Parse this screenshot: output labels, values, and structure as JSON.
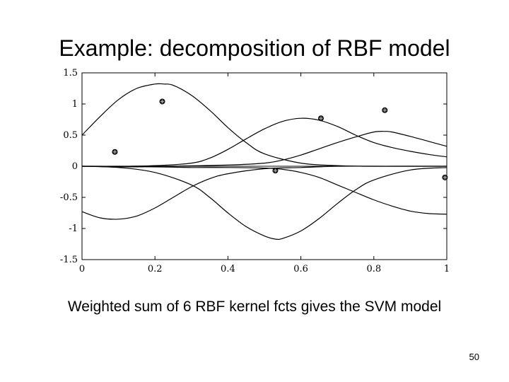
{
  "slide": {
    "title": "Example: decomposition of RBF model",
    "caption": "Weighted sum of 6 RBF kernel fcts gives the SVM model",
    "page_number": "50"
  },
  "chart_data": {
    "type": "line",
    "title": "",
    "xlabel": "",
    "ylabel": "",
    "xlim": [
      0,
      1
    ],
    "ylim": [
      -1.5,
      1.5
    ],
    "x_ticks": [
      0,
      0.2,
      0.4,
      0.6,
      0.8,
      1
    ],
    "x_tick_labels": [
      "0",
      "0.2",
      "0.4",
      "0.6",
      "0.8",
      "1"
    ],
    "y_ticks": [
      1.5,
      1,
      0.5,
      0,
      -0.5,
      -1,
      -1.5
    ],
    "y_tick_labels": [
      "1.5",
      "1",
      "0.5",
      "0",
      "-0.5",
      "-1",
      "-1.5"
    ],
    "grid": false,
    "line_color": "#000000",
    "series": [
      {
        "x": [
          0,
          0.05,
          0.1,
          0.15,
          0.2,
          0.225,
          0.25,
          0.3,
          0.35,
          0.4,
          0.45,
          0.5,
          0.6,
          0.7,
          0.8,
          0.9,
          1.0
        ],
        "y": [
          0.5,
          0.8,
          1.07,
          1.25,
          1.32,
          1.32,
          1.3,
          1.14,
          0.9,
          0.62,
          0.38,
          0.2,
          0.05,
          0.01,
          0.0,
          0.0,
          0.0
        ]
      },
      {
        "x": [
          0,
          0.1,
          0.2,
          0.3,
          0.35,
          0.4,
          0.45,
          0.5,
          0.55,
          0.6,
          0.65,
          0.7,
          0.75,
          0.8,
          0.85,
          0.9,
          0.95,
          1.0
        ],
        "y": [
          0.0,
          0.0,
          0.01,
          0.05,
          0.13,
          0.27,
          0.44,
          0.6,
          0.72,
          0.77,
          0.74,
          0.64,
          0.5,
          0.38,
          0.3,
          0.24,
          0.19,
          0.15
        ]
      },
      {
        "x": [
          0,
          0.2,
          0.4,
          0.5,
          0.55,
          0.6,
          0.65,
          0.7,
          0.75,
          0.8,
          0.83,
          0.85,
          0.9,
          0.95,
          1.0
        ],
        "y": [
          0.0,
          0.0,
          0.02,
          0.05,
          0.1,
          0.18,
          0.28,
          0.38,
          0.47,
          0.55,
          0.56,
          0.55,
          0.48,
          0.4,
          0.32
        ]
      },
      {
        "x": [
          0,
          0.05,
          0.1,
          0.15,
          0.2,
          0.25,
          0.3,
          0.35,
          0.4,
          0.5,
          0.6,
          0.7,
          0.8,
          1.0
        ],
        "y": [
          -0.73,
          -0.83,
          -0.85,
          -0.8,
          -0.67,
          -0.5,
          -0.33,
          -0.2,
          -0.12,
          -0.04,
          -0.02,
          0.0,
          0.0,
          0.0
        ]
      },
      {
        "x": [
          0,
          0.1,
          0.2,
          0.3,
          0.35,
          0.4,
          0.45,
          0.5,
          0.53,
          0.55,
          0.6,
          0.65,
          0.7,
          0.75,
          0.8,
          0.9,
          1.0
        ],
        "y": [
          0.0,
          -0.02,
          -0.1,
          -0.3,
          -0.5,
          -0.75,
          -0.97,
          -1.12,
          -1.17,
          -1.16,
          -1.04,
          -0.84,
          -0.6,
          -0.38,
          -0.22,
          -0.06,
          -0.02
        ]
      },
      {
        "x": [
          0,
          0.1,
          0.2,
          0.3,
          0.4,
          0.5,
          0.55,
          0.6,
          0.65,
          0.7,
          0.75,
          0.8,
          0.85,
          0.9,
          0.95,
          1.0
        ],
        "y": [
          0.0,
          -0.01,
          -0.01,
          -0.02,
          -0.02,
          -0.03,
          -0.05,
          -0.1,
          -0.18,
          -0.3,
          -0.42,
          -0.54,
          -0.64,
          -0.72,
          -0.76,
          -0.77
        ]
      }
    ],
    "points": [
      {
        "x": 0.09,
        "y": 0.23
      },
      {
        "x": 0.22,
        "y": 1.04
      },
      {
        "x": 0.53,
        "y": -0.07
      },
      {
        "x": 0.655,
        "y": 0.77
      },
      {
        "x": 0.83,
        "y": 0.9
      },
      {
        "x": 0.995,
        "y": -0.18
      }
    ]
  }
}
